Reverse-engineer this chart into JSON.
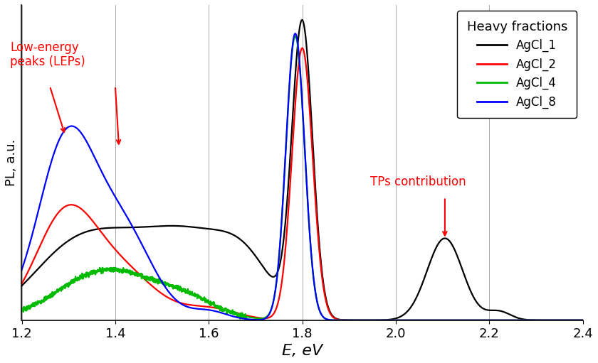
{
  "title": "",
  "xlabel": "E, eV",
  "ylabel": "PL, a.u.",
  "xlim": [
    1.2,
    2.4
  ],
  "ylim": [
    0,
    1.05
  ],
  "xticks": [
    1.2,
    1.4,
    1.6,
    1.8,
    2.0,
    2.2,
    2.4
  ],
  "legend_title": "Heavy fractions",
  "legend_labels": [
    "AgCl_1",
    "AgCl_2",
    "AgCl_4",
    "AgCl_8"
  ],
  "line_colors": [
    "#000000",
    "#ff0000",
    "#00bb00",
    "#0000ff"
  ],
  "vertical_lines": [
    1.2,
    1.4,
    1.6,
    1.8,
    2.0,
    2.2
  ],
  "background_color": "white",
  "lep_text": "Low-energy\npeaks (LEPs)",
  "tp_text": "TPs contribution"
}
